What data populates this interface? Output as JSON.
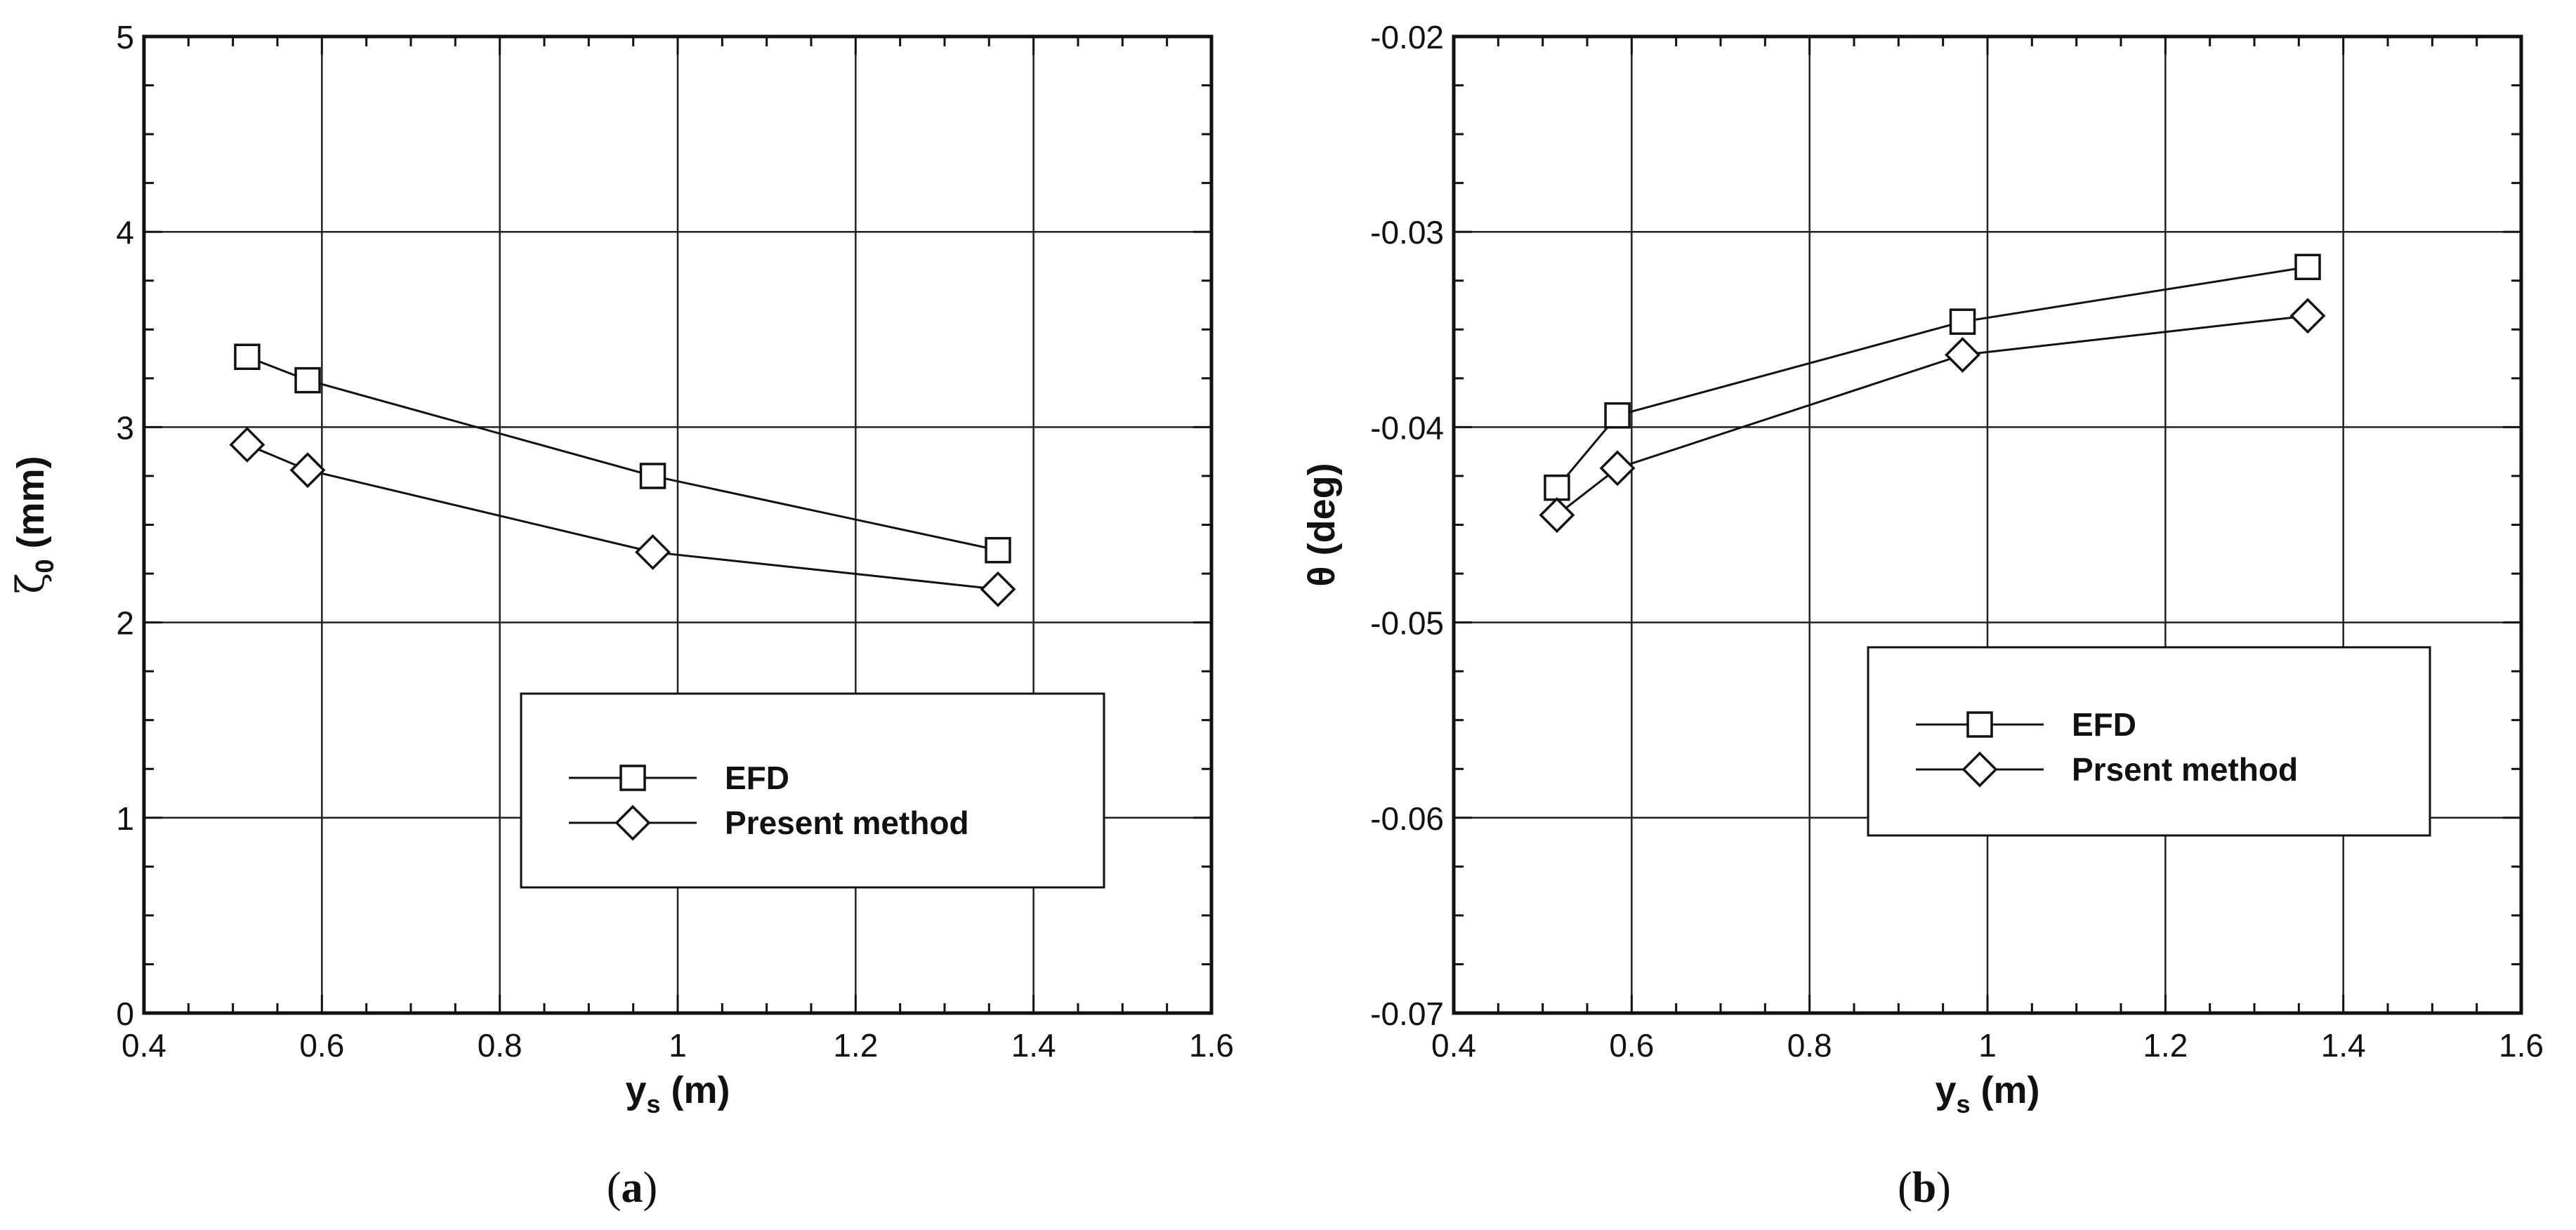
{
  "chart_data": [
    {
      "type": "line",
      "panel": "(a)",
      "caption_open": "(",
      "caption_letter": "a",
      "caption_close": ")",
      "xlabel": "y",
      "xlabel_sub": "s",
      "xlabel_unit": " (m)",
      "ylabel": "ζ",
      "ylabel_sub": "0",
      "ylabel_unit": " (mm)",
      "xlim": [
        0.4,
        1.6
      ],
      "ylim": [
        0,
        5
      ],
      "xticks": [
        "0.4",
        "0.6",
        "0.8",
        "1",
        "1.2",
        "1.4",
        "1.6"
      ],
      "yticks": [
        "0",
        "1",
        "2",
        "3",
        "4",
        "5"
      ],
      "grid": true,
      "legend_position": "lower-right",
      "series": [
        {
          "name": "EFD",
          "marker": "square",
          "x": [
            0.516,
            0.584,
            0.972,
            1.36
          ],
          "y": [
            3.36,
            3.24,
            2.75,
            2.37
          ]
        },
        {
          "name": "Present method",
          "marker": "diamond",
          "x": [
            0.516,
            0.584,
            0.972,
            1.36
          ],
          "y": [
            2.91,
            2.78,
            2.36,
            2.17
          ]
        }
      ]
    },
    {
      "type": "line",
      "panel": "(b)",
      "caption_open": "(",
      "caption_letter": "b",
      "caption_close": ")",
      "xlabel": "y",
      "xlabel_sub": "s",
      "xlabel_unit": " (m)",
      "ylabel": "θ (deg)",
      "xlim": [
        0.4,
        1.6
      ],
      "ylim": [
        -0.07,
        -0.02
      ],
      "xticks": [
        "0.4",
        "0.6",
        "0.8",
        "1",
        "1.2",
        "1.4",
        "1.6"
      ],
      "yticks": [
        "-0.07",
        "-0.06",
        "-0.05",
        "-0.04",
        "-0.03",
        "-0.02"
      ],
      "grid": true,
      "legend_position": "center-right",
      "series": [
        {
          "name": "EFD",
          "marker": "square",
          "x": [
            0.516,
            0.584,
            0.972,
            1.36
          ],
          "y": [
            -0.0431,
            -0.0394,
            -0.0346,
            -0.0318
          ]
        },
        {
          "name": "Prsent method",
          "marker": "diamond",
          "x": [
            0.516,
            0.584,
            0.972,
            1.36
          ],
          "y": [
            -0.0445,
            -0.0421,
            -0.0363,
            -0.0343
          ]
        }
      ]
    }
  ]
}
